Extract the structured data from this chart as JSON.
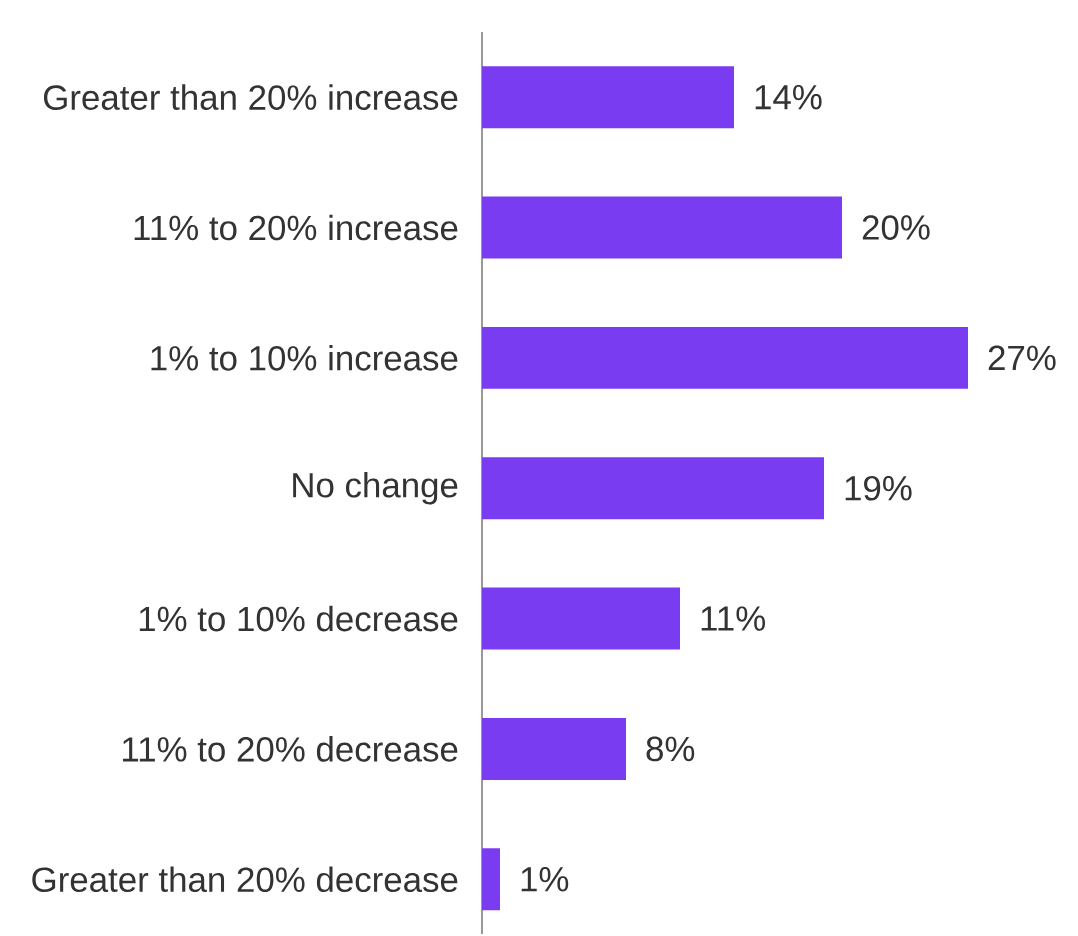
{
  "chart_data": {
    "type": "bar",
    "orientation": "horizontal",
    "categories": [
      "Greater than 20% increase",
      "11% to 20% increase",
      "1% to 10% increase",
      "No change",
      "1% to 10% decrease",
      "11% to 20% decrease",
      "Greater than 20% decrease"
    ],
    "values": [
      14,
      20,
      27,
      19,
      11,
      8,
      1
    ],
    "value_labels": [
      "14%",
      "20%",
      "27%",
      "19%",
      "11%",
      "8%",
      "1%"
    ],
    "color": "#7a3cf0"
  }
}
